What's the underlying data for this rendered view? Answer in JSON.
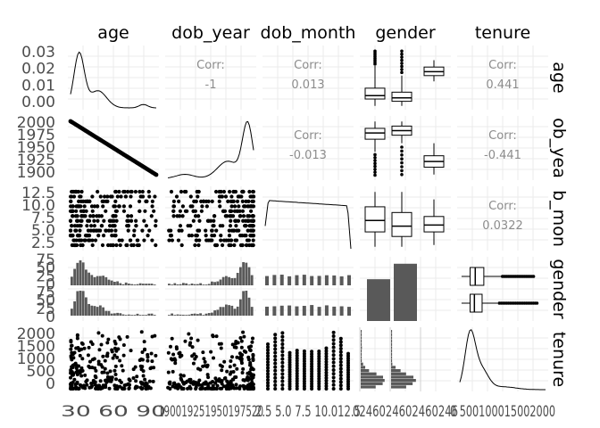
{
  "chart_data": {
    "type": "scatter-matrix",
    "variables": [
      "age",
      "dob_year",
      "dob_month",
      "gender",
      "tenure"
    ],
    "column_labels": [
      "age",
      "dob_year",
      "dob_month",
      "gender",
      "tenure"
    ],
    "row_labels": [
      "age",
      "ob_yea",
      "b_mon",
      "gender",
      "tenure"
    ],
    "y_ticks": [
      [
        "0.03",
        "0.02",
        "0.01",
        "0.00"
      ],
      [
        "2000",
        "1975",
        "1950",
        "1925",
        "1900"
      ],
      [
        "12.5",
        "10.0",
        "7.5",
        "5.0",
        "2.5"
      ],
      [
        "75",
        "50",
        "25",
        "0",
        "75",
        "50",
        "25",
        "0"
      ],
      [
        "2000",
        "1500",
        "1000",
        "500",
        "0"
      ]
    ],
    "x_ticks": [
      "30 60 90",
      "190019251950197520",
      "2.5 5.0 7.5 10.012.5",
      "0246024602460246",
      "0 500100015002000"
    ],
    "correlations": [
      {
        "row": "age",
        "col": "dob_year",
        "label": "Corr:",
        "value": "-1"
      },
      {
        "row": "age",
        "col": "dob_month",
        "label": "Corr:",
        "value": "0.013"
      },
      {
        "row": "age",
        "col": "tenure",
        "label": "Corr:",
        "value": "0.441"
      },
      {
        "row": "dob_year",
        "col": "dob_month",
        "label": "Corr:",
        "value": "-0.013"
      },
      {
        "row": "dob_year",
        "col": "tenure",
        "label": "Corr:",
        "value": "-0.441"
      },
      {
        "row": "dob_month",
        "col": "tenure",
        "label": "Corr:",
        "value": "0.0322"
      }
    ],
    "gender_counts": [
      62,
      85
    ],
    "colors": {
      "panel_bg": "#ffffff",
      "grid": "#ebebeb",
      "ink": "#000000",
      "bar": "#595959",
      "corr_text": "#8c8c8c",
      "axis_text": "#4d4d4d"
    }
  }
}
